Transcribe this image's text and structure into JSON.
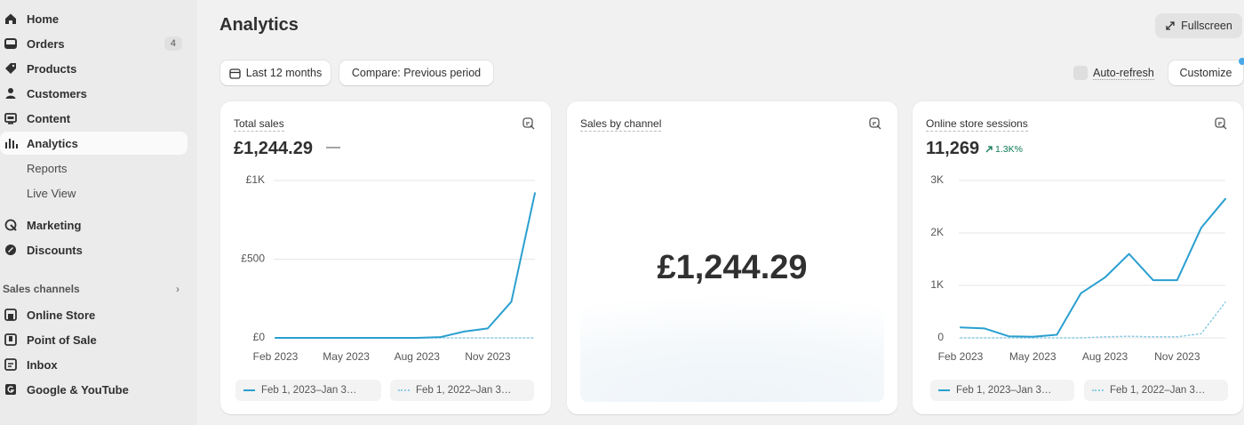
{
  "sidebar": {
    "nav": [
      {
        "label": "Home"
      },
      {
        "label": "Orders",
        "badge": 4
      },
      {
        "label": "Products"
      },
      {
        "label": "Customers"
      },
      {
        "label": "Content"
      },
      {
        "label": "Analytics"
      },
      {
        "label": "Reports"
      },
      {
        "label": "Live View"
      },
      {
        "label": "Marketing"
      },
      {
        "label": "Discounts"
      }
    ],
    "sales_channels": {
      "title": "Sales channels",
      "items": [
        {
          "label": "Online Store"
        },
        {
          "label": "Point of Sale"
        },
        {
          "label": "Inbox"
        },
        {
          "label": "Google & YouTube"
        }
      ]
    }
  },
  "header": {
    "title": "Analytics",
    "fullscreen": "Fullscreen"
  },
  "toolbar": {
    "date_range": "Last 12 months",
    "compare": "Compare: Previous period",
    "auto_refresh": "Auto-refresh",
    "customize": "Customize"
  },
  "cards": [
    {
      "title": "Total sales",
      "value": "£1,244.29",
      "change": "—",
      "chart_data": {
        "type": "line",
        "categories": [
          "Feb 2023",
          null,
          null,
          "May 2023",
          null,
          null,
          "Aug 2023",
          null,
          null,
          "Nov 2023",
          null,
          null
        ],
        "series": [
          {
            "name": "Feb 1, 2023–Jan 3…",
            "color": "#2a9fd0",
            "style": "solid",
            "values": [
              0,
              0,
              0,
              0,
              0,
              0,
              0,
              5,
              40,
              60,
              230,
              920
            ]
          },
          {
            "name": "Feb 1, 2022–Jan 3…",
            "color": "#8ccbe6",
            "style": "dotted",
            "values": [
              0,
              0,
              0,
              0,
              0,
              0,
              0,
              0,
              0,
              0,
              0,
              0
            ]
          }
        ],
        "ylim": [
          0,
          1000
        ],
        "yticks": [
          {
            "value": 0,
            "label": "£0"
          },
          {
            "value": 500,
            "label": "£500"
          },
          {
            "value": 1000,
            "label": "£1K"
          }
        ],
        "grid": true
      }
    },
    {
      "title": "Sales by channel",
      "value": "£1,244.29"
    },
    {
      "title": "Online store sessions",
      "value": "11,269",
      "change": "1.3K%",
      "chart_data": {
        "type": "line",
        "categories": [
          "Feb 2023",
          null,
          null,
          "May 2023",
          null,
          null,
          "Aug 2023",
          null,
          null,
          "Nov 2023",
          null,
          null
        ],
        "series": [
          {
            "name": "Feb 1, 2023–Jan 3…",
            "color": "#2a9fd0",
            "style": "solid",
            "values": [
              200,
              180,
              30,
              20,
              60,
              850,
              1150,
              1600,
              1100,
              1100,
              2100,
              2650
            ]
          },
          {
            "name": "Feb 1, 2022–Jan 3…",
            "color": "#8ccbe6",
            "style": "dotted",
            "values": [
              0,
              0,
              0,
              0,
              0,
              0,
              20,
              30,
              20,
              20,
              80,
              680
            ]
          }
        ],
        "ylim": [
          0,
          3000
        ],
        "yticks": [
          0,
          {
            "value": 1000,
            "label": "1K"
          },
          {
            "value": 2000,
            "label": "2K"
          },
          {
            "value": 3000,
            "label": "3K"
          }
        ],
        "grid": true
      }
    }
  ]
}
